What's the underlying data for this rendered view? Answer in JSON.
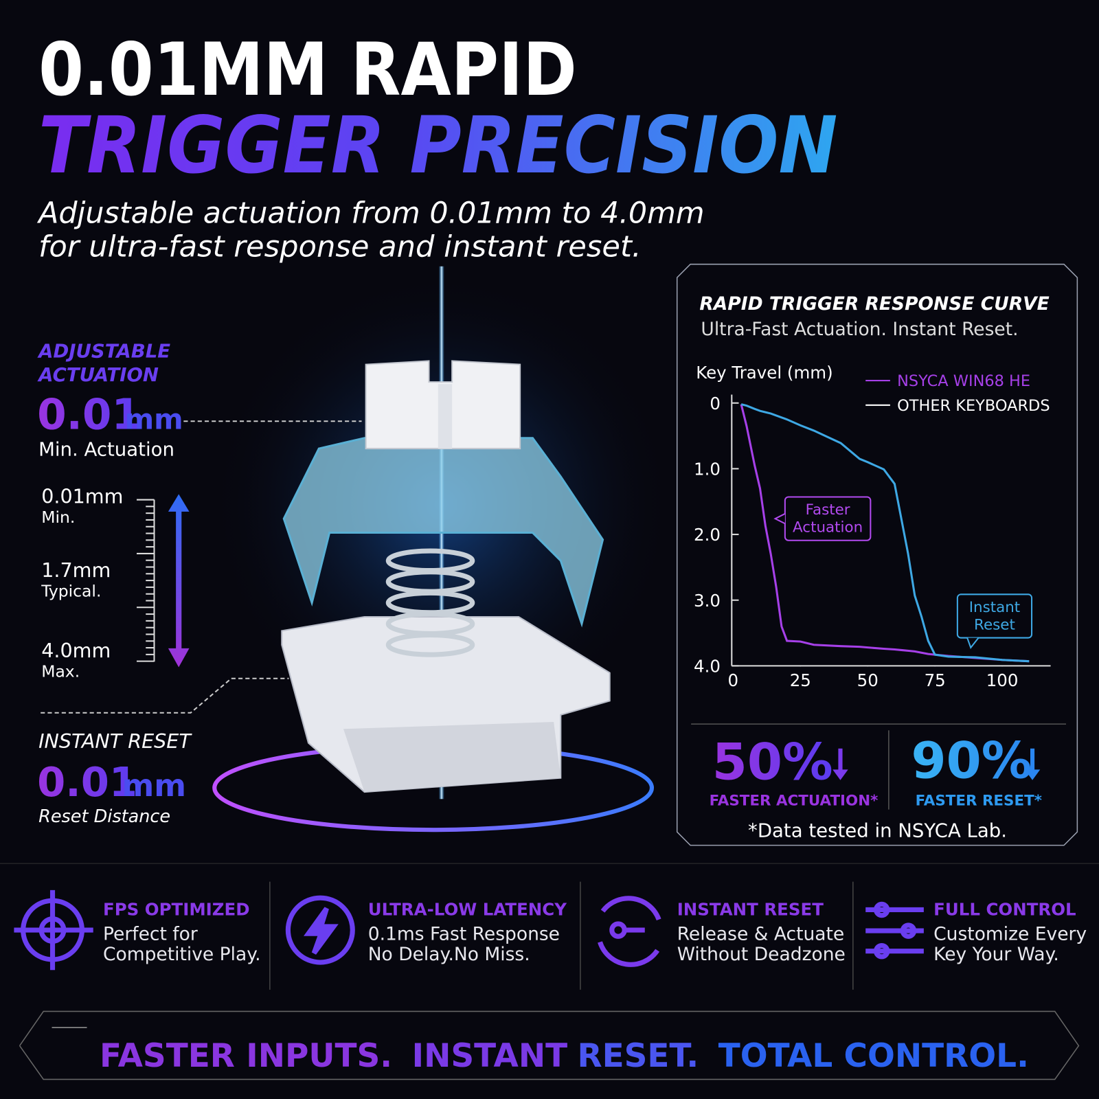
{
  "header": {
    "title_line1": "0.01MM RAPID",
    "title_line2": "TRIGGER PRECISION",
    "subtitle_line1": "Adjustable actuation from 0.01mm to 4.0mm",
    "subtitle_line2": "for ultra-fast response and instant reset."
  },
  "actuation": {
    "label_lines": [
      "ADJUSTABLE",
      "ACTUATION"
    ],
    "value": "0.01",
    "unit": "mm",
    "caption": "Min. Actuation",
    "scale": [
      {
        "value": "0.01mm",
        "label": "Min."
      },
      {
        "value": "1.7mm",
        "label": "Typical."
      },
      {
        "value": "4.0mm",
        "label": "Max."
      }
    ]
  },
  "reset": {
    "title": "INSTANT RESET",
    "value": "0.01",
    "unit": "mm",
    "caption": "Reset Distance"
  },
  "panel": {
    "title": "RAPID TRIGGER RESPONSE CURVE",
    "subtitle": "Ultra-Fast Actuation. Instant Reset.",
    "stats": [
      {
        "value": "50%",
        "label": "FASTER ACTUATION*"
      },
      {
        "value": "90%",
        "label": "FASTER RESET*"
      }
    ],
    "note": "*Data tested in NSYCA Lab."
  },
  "chart_data": {
    "type": "line",
    "y_label": "Key Travel (mm)",
    "x": [
      3,
      5,
      8,
      10,
      12,
      14,
      16,
      18,
      20,
      25,
      30,
      40,
      47,
      50,
      56,
      60,
      62.5,
      65,
      67.5,
      70,
      72.5,
      75,
      80,
      90,
      100,
      110
    ],
    "series": [
      {
        "name": "NSYCA WIN68 HE",
        "color": "#a640e8",
        "values": [
          0.02,
          0.35,
          0.95,
          1.3,
          1.87,
          2.3,
          2.8,
          3.4,
          3.62,
          3.63,
          3.68,
          3.7,
          3.71,
          3.72,
          3.74,
          3.75,
          3.76,
          3.77,
          3.78,
          3.8,
          3.82,
          3.83,
          3.85,
          3.88,
          3.91,
          3.93
        ]
      },
      {
        "name": "OTHER KEYBOARDS",
        "color": "#3ea8e4",
        "values": [
          0.02,
          0.04,
          0.09,
          0.12,
          0.14,
          0.16,
          0.19,
          0.22,
          0.25,
          0.34,
          0.42,
          0.61,
          0.85,
          0.9,
          1.01,
          1.23,
          1.76,
          2.29,
          2.93,
          3.25,
          3.62,
          3.83,
          3.86,
          3.87,
          3.91,
          3.93
        ]
      }
    ],
    "xlim": [
      0,
      118
    ],
    "xticks": [
      0,
      25,
      50,
      75,
      100
    ],
    "ylim": [
      4,
      0
    ],
    "yticks": [
      0,
      {
        "value": 1,
        "label": "1.0"
      },
      {
        "value": 2,
        "label": "2.0"
      },
      {
        "value": 3,
        "label": "3.0"
      },
      {
        "value": 4,
        "label": "4.0"
      }
    ],
    "annotations": [
      {
        "lines": [
          "Faster",
          "Actuation"
        ],
        "color": "#b24af0"
      },
      {
        "lines": [
          "Instant",
          "Reset"
        ],
        "color": "#3ea8e4"
      }
    ]
  },
  "features": [
    {
      "title": "FPS OPTIMIZED",
      "lines": [
        "Perfect for",
        "Competitive Play."
      ]
    },
    {
      "title": "ULTRA-LOW LATENCY",
      "lines": [
        "0.1ms Fast Response",
        "No Delay.No Miss."
      ]
    },
    {
      "title": "INSTANT RESET",
      "lines": [
        "Release & Actuate",
        "Without Deadzone"
      ]
    },
    {
      "title": "FULL CONTROL",
      "lines": [
        "Customize Every",
        "Key Your Way."
      ]
    }
  ],
  "footer": {
    "parts": [
      "FASTER INPUTS.",
      "INSTANT",
      "RESET.",
      "TOTAL CONTROL."
    ]
  }
}
